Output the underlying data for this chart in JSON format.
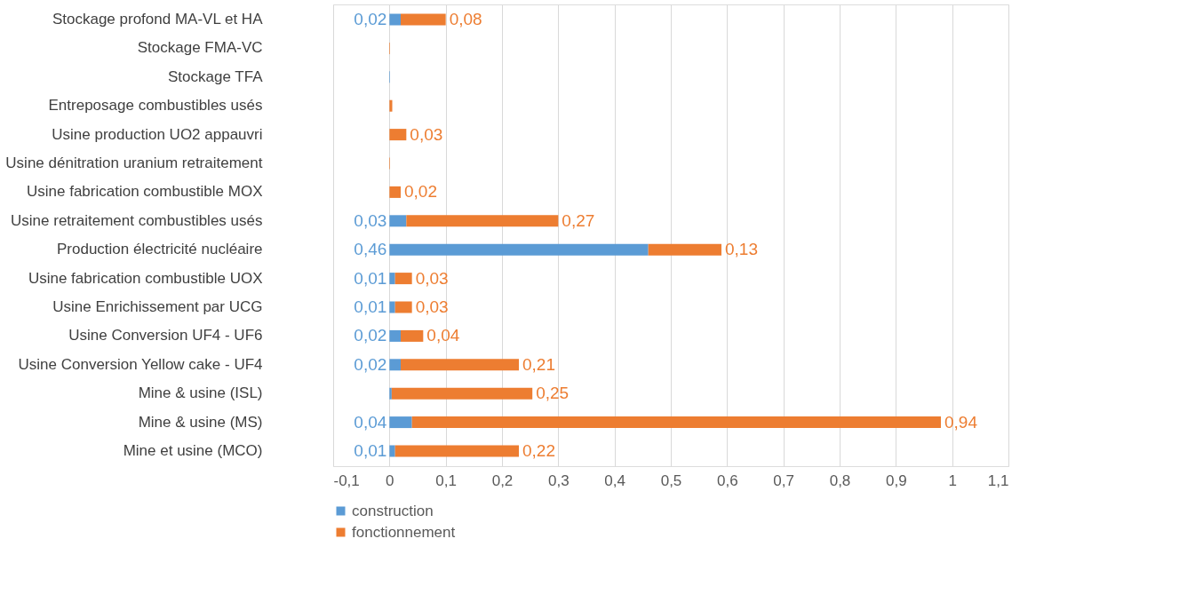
{
  "chart_data": {
    "type": "bar",
    "orientation": "horizontal",
    "stacked": true,
    "categories": [
      "Stockage profond MA-VL et HA",
      "Stockage FMA-VC",
      "Stockage TFA",
      "Entreposage combustibles usés",
      "Usine production UO2 appauvri",
      "Usine dénitration uranium retraitement",
      "Usine fabrication combustible MOX",
      "Usine retraitement combustibles usés",
      "Production électricité nucléaire",
      "Usine fabrication combustible UOX",
      "Usine Enrichissement par UCG",
      "Usine Conversion UF4 - UF6",
      "Usine Conversion Yellow cake - UF4",
      "Mine & usine  (ISL)",
      "Mine & usine (MS)",
      "Mine et usine (MCO)"
    ],
    "series": [
      {
        "name": "construction",
        "color": "#5b9bd5",
        "values": [
          0.02,
          null,
          0.001,
          null,
          null,
          null,
          null,
          0.03,
          0.46,
          0.01,
          0.01,
          0.02,
          0.02,
          0.004,
          0.04,
          0.01
        ],
        "value_labels": [
          "0,02",
          null,
          null,
          null,
          null,
          null,
          null,
          "0,03",
          "0,46",
          "0,01",
          "0,01",
          "0,02",
          "0,02",
          null,
          "0,04",
          "0,01"
        ]
      },
      {
        "name": "fonctionnement",
        "color": "#ed7d31",
        "values": [
          0.08,
          0.001,
          null,
          0.005,
          0.03,
          0.001,
          0.02,
          0.27,
          0.13,
          0.03,
          0.03,
          0.04,
          0.21,
          0.25,
          0.94,
          0.22
        ],
        "value_labels": [
          "0,08",
          null,
          null,
          null,
          "0,03",
          null,
          "0,02",
          "0,27",
          "0,13",
          "0,03",
          "0,03",
          "0,04",
          "0,21",
          "0,25",
          "0,94",
          "0,22"
        ]
      }
    ],
    "xlim": [
      -0.1,
      1.1
    ],
    "xticks": [
      {
        "value": -0.1,
        "label": "-0,1"
      },
      0,
      {
        "value": 0.1,
        "label": "0,1"
      },
      {
        "value": 0.2,
        "label": "0,2"
      },
      {
        "value": 0.3,
        "label": "0,3"
      },
      {
        "value": 0.4,
        "label": "0,4"
      },
      {
        "value": 0.5,
        "label": "0,5"
      },
      {
        "value": 0.6,
        "label": "0,6"
      },
      {
        "value": 0.7,
        "label": "0,7"
      },
      {
        "value": 0.8,
        "label": "0,8"
      },
      {
        "value": 0.9,
        "label": "0,9"
      },
      1,
      {
        "value": 1.1,
        "label": "1,1"
      }
    ],
    "grid": "x",
    "legend": "bottom"
  }
}
